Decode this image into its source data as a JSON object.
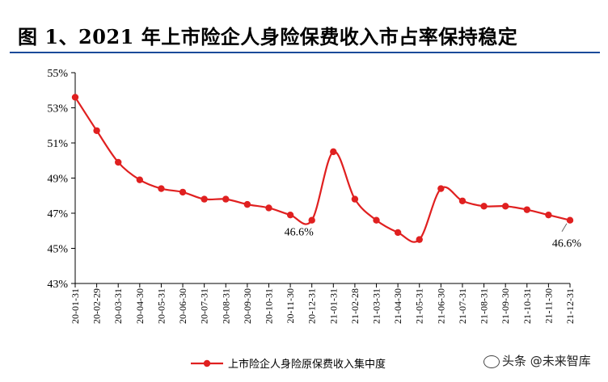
{
  "title": "图 1、2021 年上市险企人身险保费收入市占率保持稳定",
  "watermark": "头条 @未来智库",
  "colors": {
    "line": "#e02020",
    "axis": "#000000",
    "title_rule": "#1a4a9a"
  },
  "chart_data": {
    "type": "line",
    "title": "",
    "xlabel": "",
    "ylabel": "",
    "ylim": [
      43,
      55
    ],
    "yticks": [
      "43%",
      "45%",
      "47%",
      "49%",
      "51%",
      "53%",
      "55%"
    ],
    "grid": false,
    "legend_position": "bottom",
    "categories": [
      "20-01-31",
      "20-02-29",
      "20-03-31",
      "20-04-30",
      "20-05-31",
      "20-06-30",
      "20-07-31",
      "20-08-31",
      "20-09-30",
      "20-10-31",
      "20-11-30",
      "20-12-31",
      "21-01-31",
      "21-02-28",
      "21-03-31",
      "21-04-30",
      "21-05-31",
      "21-06-30",
      "21-07-31",
      "21-08-31",
      "21-09-30",
      "21-10-31",
      "21-11-30",
      "21-12-31"
    ],
    "series": [
      {
        "name": "上市险企人身险原保费收入集中度",
        "values": [
          53.6,
          51.7,
          49.9,
          48.9,
          48.4,
          48.2,
          47.8,
          47.8,
          47.5,
          47.3,
          46.9,
          46.6,
          50.5,
          47.8,
          46.6,
          45.9,
          45.5,
          48.4,
          47.7,
          47.4,
          47.4,
          47.2,
          46.9,
          46.6
        ]
      }
    ],
    "annotations": [
      {
        "text": "46.6%",
        "category": "20-12-31"
      },
      {
        "text": "46.6%",
        "category": "21-12-31"
      }
    ]
  }
}
